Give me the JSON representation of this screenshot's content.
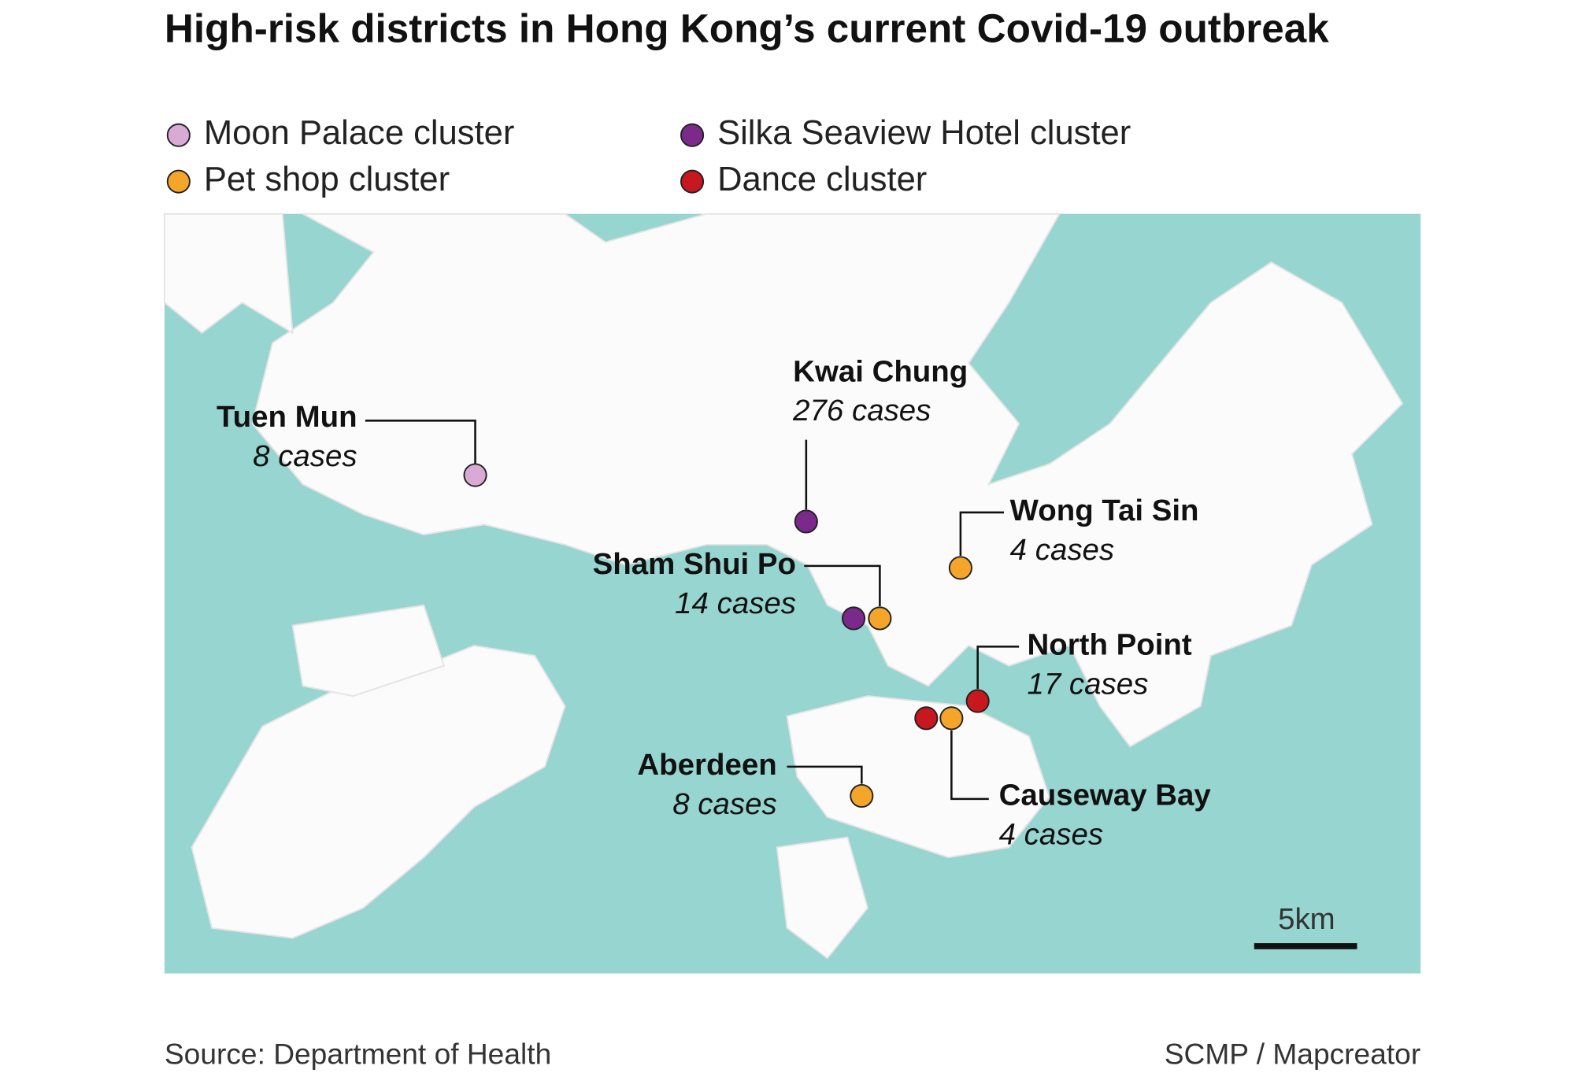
{
  "title": "High-risk districts in Hong Kong’s current Covid-19 outbreak",
  "legend": [
    {
      "label": "Moon Palace cluster",
      "color": "#d9aad6"
    },
    {
      "label": "Silka Seaview Hotel cluster",
      "color": "#7b2a8c"
    },
    {
      "label": "Pet shop cluster",
      "color": "#f5a52a"
    },
    {
      "label": "Dance cluster",
      "color": "#c8171e"
    }
  ],
  "districts": [
    {
      "name": "Tuen Mun",
      "cases": "8 cases"
    },
    {
      "name": "Kwai Chung",
      "cases": "276 cases"
    },
    {
      "name": "Wong Tai Sin",
      "cases": "4 cases"
    },
    {
      "name": "Sham Shui Po",
      "cases": "14 cases"
    },
    {
      "name": "North Point",
      "cases": "17 cases"
    },
    {
      "name": "Aberdeen",
      "cases": "8 cases"
    },
    {
      "name": "Causeway Bay",
      "cases": "4 cases"
    }
  ],
  "scale": "5km",
  "source": "Source: Department of Health",
  "credit": "SCMP / Mapcreator"
}
